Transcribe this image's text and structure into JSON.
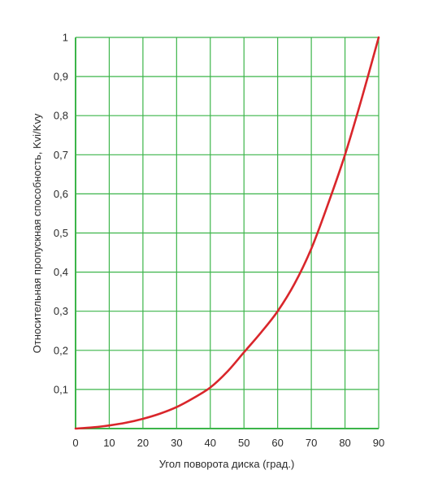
{
  "chart_data": {
    "type": "line",
    "title": "",
    "xlabel": "Угол поворота диска (град.)",
    "ylabel": "Относительная пропускная способность, Kvi/Kvy",
    "xlim": [
      0,
      90
    ],
    "ylim": [
      0,
      1
    ],
    "x_ticks": [
      0,
      10,
      20,
      30,
      40,
      50,
      60,
      70,
      80,
      90
    ],
    "x_tick_labels": [
      "0",
      "10",
      "20",
      "30",
      "40",
      "50",
      "60",
      "70",
      "80",
      "90"
    ],
    "y_ticks": [
      0.1,
      0.2,
      0.3,
      0.4,
      0.5,
      0.6,
      0.7,
      0.8,
      0.9,
      1.0
    ],
    "y_tick_labels": [
      "0,1",
      "0,2",
      "0,3",
      "0,4",
      "0,5",
      "0,6",
      "0,7",
      "0,8",
      "0,9",
      "1"
    ],
    "grid": true,
    "colors": {
      "grid": "#3cb54a",
      "line": "#d9262b",
      "axis_text": "#2a2a2a"
    },
    "series": [
      {
        "x": [
          0,
          5,
          10,
          15,
          20,
          25,
          30,
          35,
          40,
          45,
          50,
          55,
          60,
          65,
          70,
          75,
          80,
          85,
          90
        ],
        "y": [
          0.0,
          0.003,
          0.008,
          0.015,
          0.025,
          0.038,
          0.055,
          0.078,
          0.105,
          0.145,
          0.195,
          0.245,
          0.3,
          0.37,
          0.46,
          0.575,
          0.7,
          0.845,
          1.0
        ]
      }
    ]
  }
}
